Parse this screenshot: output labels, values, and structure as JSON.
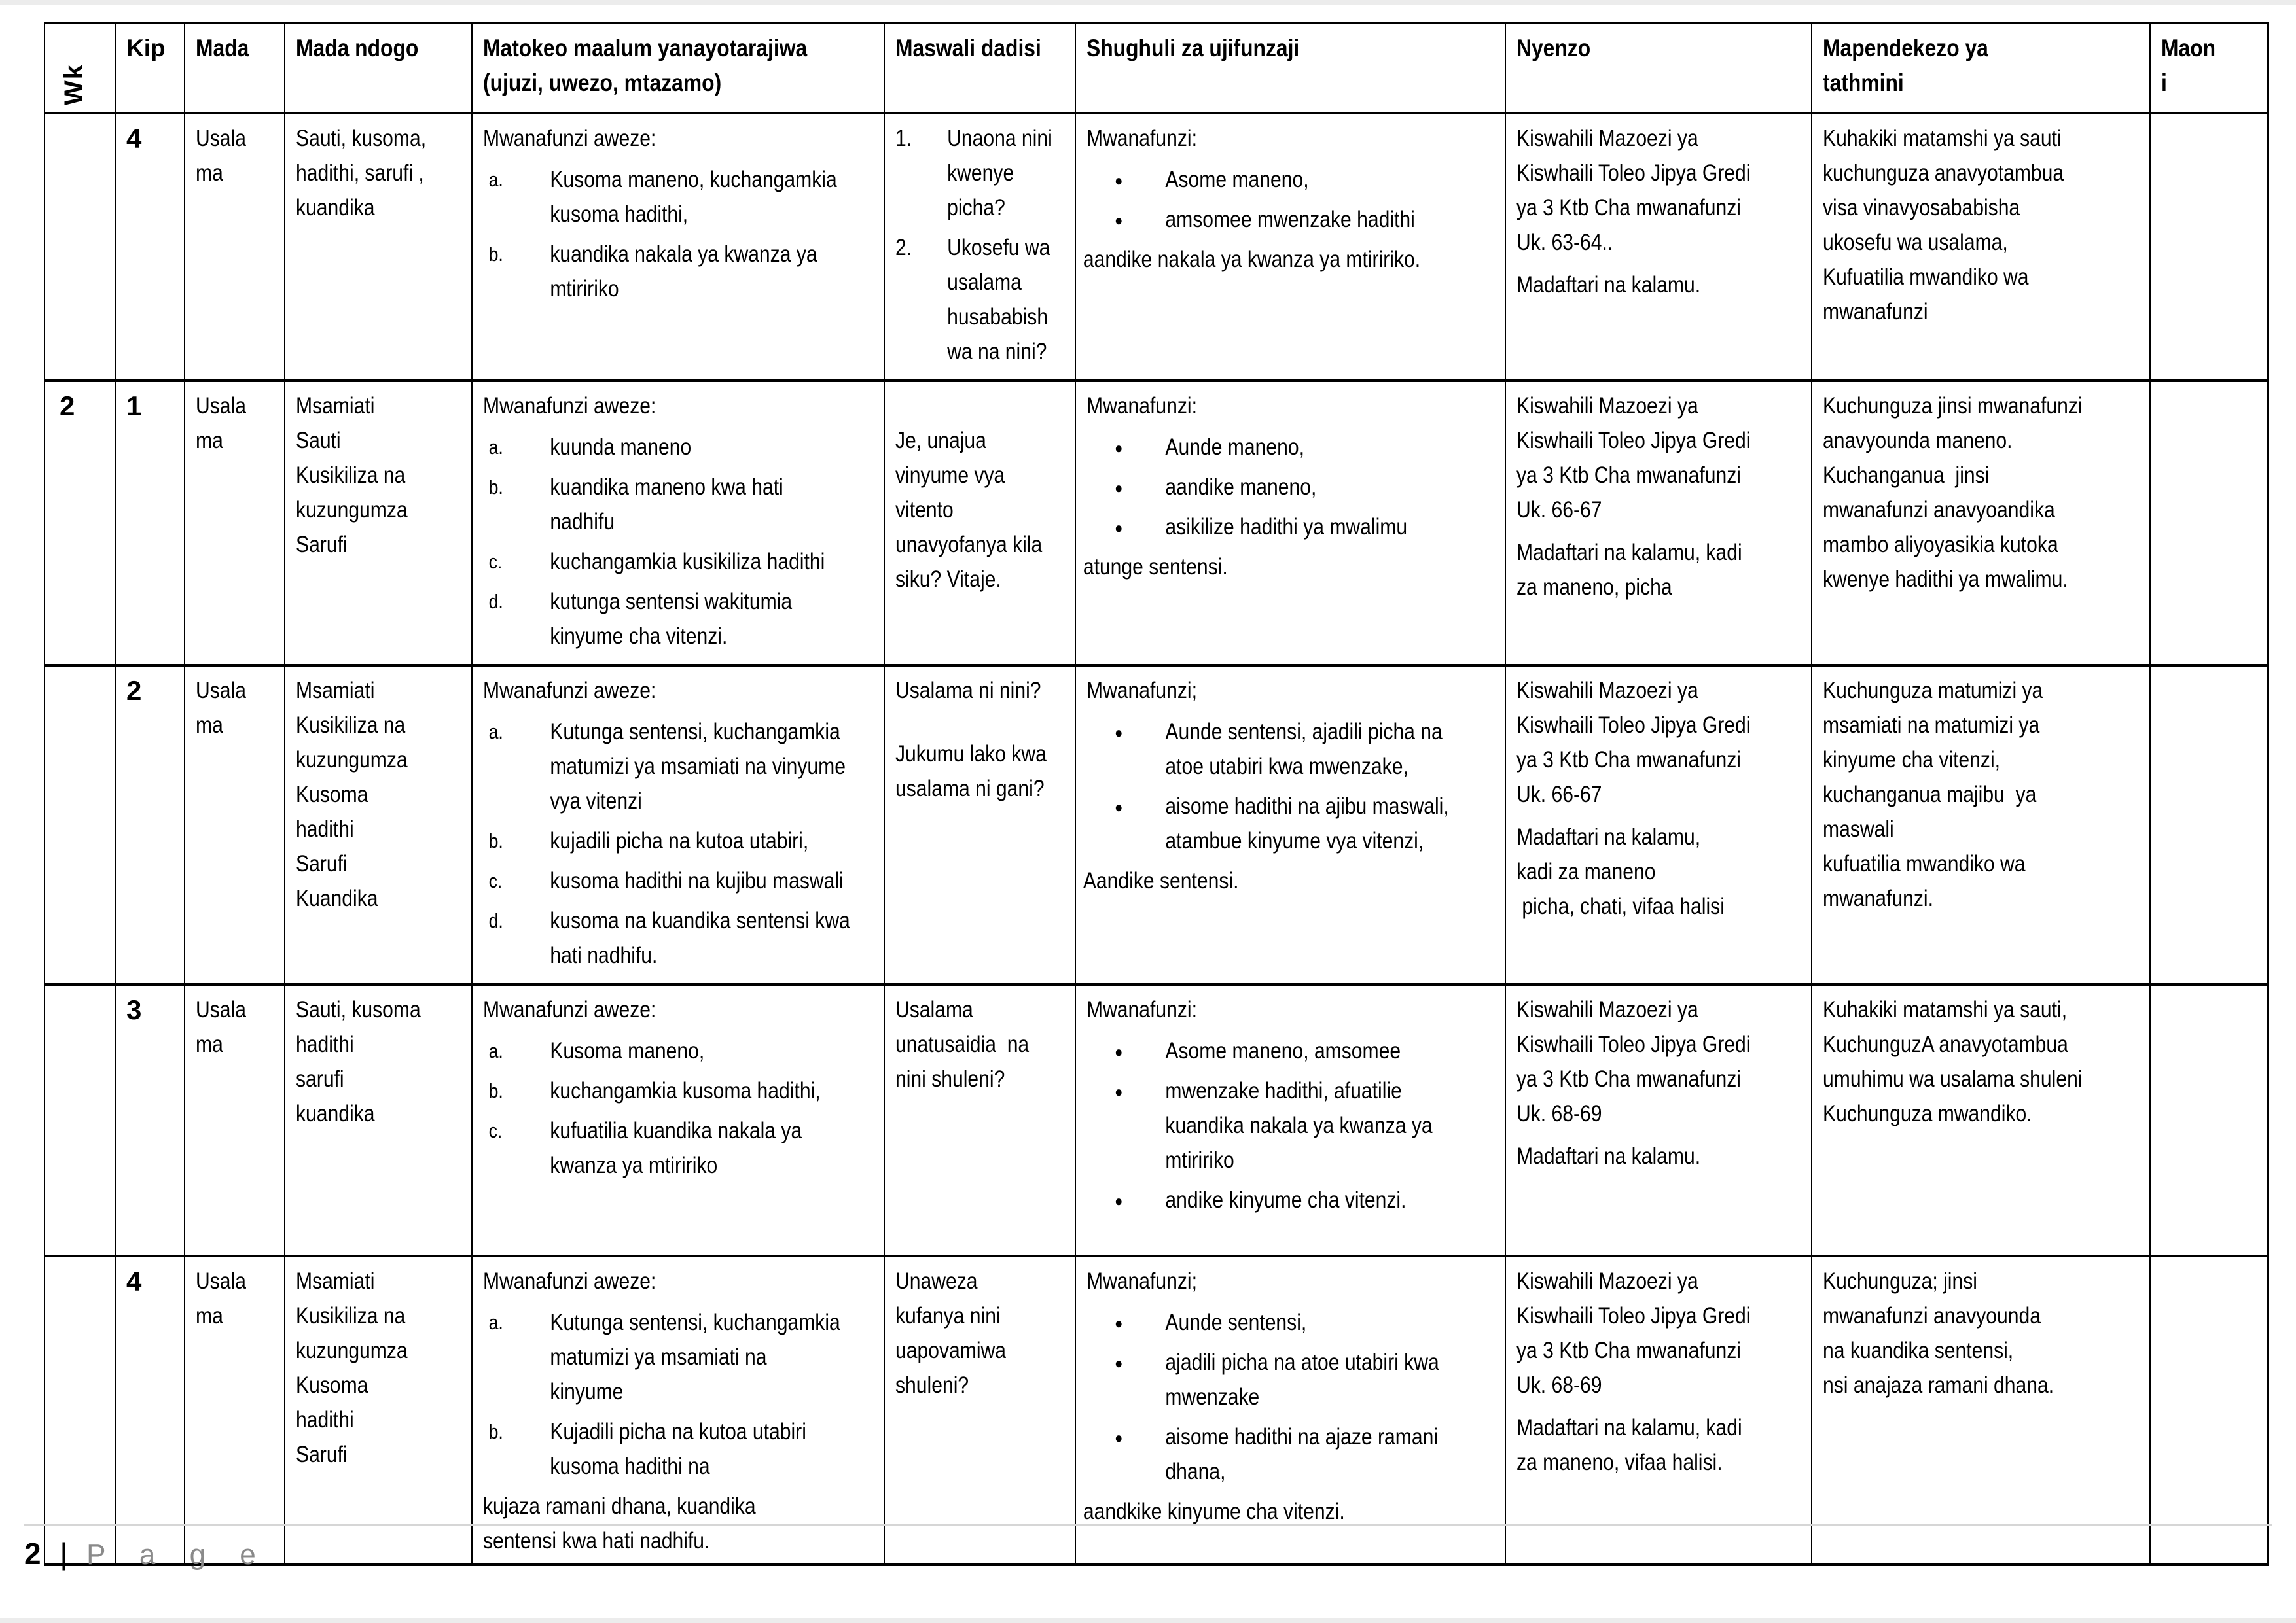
{
  "document": {
    "footer": {
      "page_number": "2",
      "separator": "|",
      "page_label": "P a g e"
    }
  },
  "table": {
    "columns": [
      {
        "key": "wk",
        "label": "Wk"
      },
      {
        "key": "kip",
        "label": "Kip"
      },
      {
        "key": "mada",
        "label": "Mada"
      },
      {
        "key": "mada_ndogo",
        "label": "Mada ndogo"
      },
      {
        "key": "matokeo",
        "label": "Matokeo maalum yanayotarajiwa\n(ujuzi, uwezo, mtazamo)"
      },
      {
        "key": "maswali",
        "label": "Maswali dadisi"
      },
      {
        "key": "shughuli",
        "label": "Shughuli za ujifunzaji"
      },
      {
        "key": "nyenzo",
        "label": "Nyenzo"
      },
      {
        "key": "mapendekezo",
        "label": "Mapendekezo ya\ntathmini"
      },
      {
        "key": "maoni",
        "label": "Maon\ni"
      }
    ],
    "rows": [
      {
        "wk": "",
        "kip": "4",
        "mada": [
          {
            "t": "p",
            "text": "Usala\nma"
          }
        ],
        "mada_ndogo": [
          {
            "t": "p",
            "text": "Sauti, kusoma,\nhadithi, sarufi ,\nkuandika"
          }
        ],
        "matokeo": [
          {
            "t": "p",
            "text": "Mwanafunzi aweze:"
          },
          {
            "t": "list",
            "style": "letters",
            "items": [
              "Kusoma maneno, kuchangamkia\nkusoma hadithi,",
              "kuandika nakala ya kwanza ya\nmtiririko"
            ]
          }
        ],
        "maswali": [
          {
            "t": "list",
            "style": "numbers",
            "items": [
              "Unaona nini\nkwenye\npicha?",
              "Ukosefu wa\nusalama\nhusababish\nwa na nini?"
            ]
          }
        ],
        "shughuli": [
          {
            "t": "p",
            "text": "Mwanafunzi:"
          },
          {
            "t": "list",
            "style": "bullets",
            "items": [
              "Asome maneno,",
              "amsomee mwenzake hadithi"
            ]
          },
          {
            "t": "p",
            "class": "flush",
            "text": "aandike nakala ya kwanza ya mtiririko."
          }
        ],
        "nyenzo": [
          {
            "t": "p",
            "text": "Kiswahili Mazoezi ya\nKiswhaili Toleo Jipya Gredi\nya 3 Ktb Cha mwanafunzi\nUk. 63-64.."
          },
          {
            "t": "p",
            "text": "Madaftari na kalamu."
          }
        ],
        "mapendekezo": [
          {
            "t": "p",
            "text": "Kuhakiki matamshi ya sauti\nkuchunguza anavyotambua\nvisa vinavyosababisha\nukosefu wa usalama,\nKufuatilia mwandiko wa\nmwanafunzi"
          }
        ],
        "maoni": []
      },
      {
        "wk": "2",
        "kip": "1",
        "mada": [
          {
            "t": "p",
            "text": "Usala\nma"
          }
        ],
        "mada_ndogo": [
          {
            "t": "p",
            "text": "Msamiati\nSauti\nKusikiliza na\nkuzungumza\nSarufi"
          }
        ],
        "matokeo": [
          {
            "t": "p",
            "text": "Mwanafunzi aweze:"
          },
          {
            "t": "list",
            "style": "letters",
            "items": [
              "kuunda maneno",
              "kuandika maneno kwa hati\nnadhifu",
              "kuchangamkia kusikiliza hadithi",
              "kutunga sentensi wakitumia\nkinyume cha vitenzi."
            ]
          }
        ],
        "maswali": [
          {
            "t": "p",
            "text": "\nJe, unajua\nvinyume vya\nvitento\nunavyofanya kila\nsiku? Vitaje."
          }
        ],
        "shughuli": [
          {
            "t": "p",
            "text": "Mwanafunzi:"
          },
          {
            "t": "list",
            "style": "bullets",
            "items": [
              "Aunde maneno,",
              "aandike maneno,",
              "asikilize hadithi ya mwalimu"
            ]
          },
          {
            "t": "p",
            "class": "flush",
            "text": "atunge sentensi."
          }
        ],
        "nyenzo": [
          {
            "t": "p",
            "text": "Kiswahili Mazoezi ya\nKiswhaili Toleo Jipya Gredi\nya 3 Ktb Cha mwanafunzi\nUk. 66-67"
          },
          {
            "t": "p",
            "text": "Madaftari na kalamu, kadi\nza maneno, picha"
          }
        ],
        "mapendekezo": [
          {
            "t": "p",
            "text": "Kuchunguza jinsi mwanafunzi\nanavyounda maneno.\nKuchanganua  jinsi\nmwanafunzi anavyoandika\nmambo aliyoyasikia kutoka\nkwenye hadithi ya mwalimu."
          }
        ],
        "maoni": []
      },
      {
        "wk": "",
        "kip": "2",
        "mada": [
          {
            "t": "p",
            "text": "Usala\nma"
          }
        ],
        "mada_ndogo": [
          {
            "t": "p",
            "text": "Msamiati\nKusikiliza na\nkuzungumza\nKusoma\nhadithi\nSarufi\nKuandika"
          }
        ],
        "matokeo": [
          {
            "t": "p",
            "text": "Mwanafunzi aweze:"
          },
          {
            "t": "list",
            "style": "letters",
            "items": [
              "Kutunga sentensi, kuchangamkia\nmatumizi ya msamiati na vinyume\nvya vitenzi",
              "kujadili picha na kutoa utabiri,",
              "kusoma hadithi na kujibu maswali",
              "kusoma na kuandika sentensi kwa\nhati nadhifu."
            ]
          }
        ],
        "maswali": [
          {
            "t": "p",
            "text": "Usalama ni nini?"
          },
          {
            "t": "p",
            "text": "Jukumu lako kwa\nusalama ni gani?"
          }
        ],
        "shughuli": [
          {
            "t": "p",
            "text": "Mwanafunzi;"
          },
          {
            "t": "list",
            "style": "bullets",
            "items": [
              "Aunde sentensi, ajadili picha na\natoe utabiri kwa mwenzake,",
              "aisome hadithi na ajibu maswali,\natambue kinyume vya vitenzi,"
            ]
          },
          {
            "t": "p",
            "class": "flush",
            "text": "Aandike sentensi."
          }
        ],
        "nyenzo": [
          {
            "t": "p",
            "text": "Kiswahili Mazoezi ya\nKiswhaili Toleo Jipya Gredi\nya 3 Ktb Cha mwanafunzi\nUk. 66-67"
          },
          {
            "t": "p",
            "text": "Madaftari na kalamu,\nkadi za maneno\n picha, chati, vifaa halisi"
          }
        ],
        "mapendekezo": [
          {
            "t": "p",
            "text": "Kuchunguza matumizi ya\nmsamiati na matumizi ya\nkinyume cha vitenzi,\nkuchanganua majibu  ya\nmaswali\nkufuatilia mwandiko wa\nmwanafunzi."
          }
        ],
        "maoni": []
      },
      {
        "wk": "",
        "kip": "3",
        "mada": [
          {
            "t": "p",
            "text": "Usala\nma"
          }
        ],
        "mada_ndogo": [
          {
            "t": "p",
            "text": "Sauti, kusoma\nhadithi\nsarufi\nkuandika"
          }
        ],
        "matokeo": [
          {
            "t": "p",
            "text": "Mwanafunzi aweze:"
          },
          {
            "t": "list",
            "style": "letters",
            "items": [
              "Kusoma maneno,",
              "kuchangamkia kusoma hadithi,",
              "kufuatilia kuandika nakala ya\nkwanza ya mtiririko"
            ]
          }
        ],
        "maswali": [
          {
            "t": "p",
            "text": "Usalama\nunatusaidia  na\nnini shuleni?"
          }
        ],
        "shughuli": [
          {
            "t": "p",
            "text": "Mwanafunzi:"
          },
          {
            "t": "list",
            "style": "bullets",
            "items": [
              "Asome maneno, amsomee",
              "mwenzake hadithi, afuatilie\nkuandika nakala ya kwanza ya\nmtiririko",
              "andike kinyume cha vitenzi."
            ]
          }
        ],
        "nyenzo": [
          {
            "t": "p",
            "text": "Kiswahili Mazoezi ya\nKiswhaili Toleo Jipya Gredi\nya 3 Ktb Cha mwanafunzi\nUk. 68-69"
          },
          {
            "t": "p",
            "text": "Madaftari na kalamu."
          }
        ],
        "mapendekezo": [
          {
            "t": "p",
            "text": "Kuhakiki matamshi ya sauti,\nKuchunguzA anavyotambua\numuhimu wa usalama shuleni\nKuchunguza mwandiko."
          }
        ],
        "maoni": []
      },
      {
        "wk": "",
        "kip": "4",
        "mada": [
          {
            "t": "p",
            "text": "Usala\nma"
          }
        ],
        "mada_ndogo": [
          {
            "t": "p",
            "text": "Msamiati\nKusikiliza na\nkuzungumza\nKusoma\nhadithi\nSarufi"
          }
        ],
        "matokeo": [
          {
            "t": "p",
            "text": "Mwanafunzi aweze:"
          },
          {
            "t": "list",
            "style": "letters",
            "items": [
              "Kutunga sentensi, kuchangamkia\nmatumizi ya msamiati na\nkinyume",
              "Kujadili picha na kutoa utabiri\nkusoma hadithi na"
            ]
          },
          {
            "t": "p",
            "class": "flush",
            "text": "kujaza ramani dhana, kuandika\nsentensi kwa hati nadhifu."
          }
        ],
        "maswali": [
          {
            "t": "p",
            "text": "Unaweza\nkufanya nini\nuapovamiwa\nshuleni?"
          }
        ],
        "shughuli": [
          {
            "t": "p",
            "text": "Mwanafunzi;"
          },
          {
            "t": "list",
            "style": "bullets",
            "items": [
              "Aunde sentensi,",
              "ajadili picha na atoe utabiri kwa\nmwenzake",
              "aisome hadithi na ajaze ramani\ndhana,"
            ]
          },
          {
            "t": "p",
            "class": "flush",
            "text": "aandkike kinyume cha vitenzi."
          }
        ],
        "nyenzo": [
          {
            "t": "p",
            "text": "Kiswahili Mazoezi ya\nKiswhaili Toleo Jipya Gredi\nya 3 Ktb Cha mwanafunzi\nUk. 68-69"
          },
          {
            "t": "p",
            "text": "Madaftari na kalamu, kadi\nza maneno, vifaa halisi."
          }
        ],
        "mapendekezo": [
          {
            "t": "p",
            "text": "Kuchunguza; jinsi\nmwanafunzi anavyounda\nna kuandika sentensi,\nnsi anajaza ramani dhana."
          }
        ],
        "maoni": []
      }
    ]
  }
}
